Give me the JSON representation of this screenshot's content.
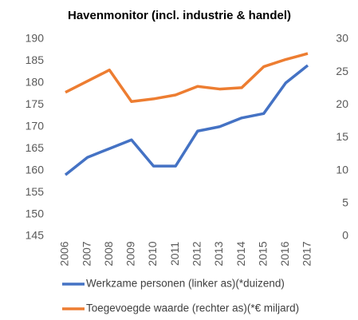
{
  "chart_data": {
    "type": "line",
    "title": "Havenmonitor (incl. industrie & handel)",
    "categories": [
      "2006",
      "2007",
      "2008",
      "2009",
      "2010",
      "2011",
      "2012",
      "2013",
      "2014",
      "2015",
      "2016",
      "2017"
    ],
    "series": [
      {
        "name": "Werkzame personen (linker as)(*duizend)",
        "color": "#4472c4",
        "values": [
          159,
          163,
          165,
          167,
          161,
          161,
          169,
          170,
          172,
          173,
          180,
          184
        ]
      },
      {
        "name": "Toegevoegde waarde (rechter as)(*€ miljard)",
        "color": "#ed7d31",
        "axis": "y2",
        "values": [
          21.9,
          23.6,
          25.3,
          20.5,
          20.9,
          21.5,
          22.8,
          22.4,
          22.6,
          25.8,
          26.9,
          27.8
        ]
      }
    ],
    "ylim": [
      145,
      190
    ],
    "yticks": [
      145,
      150,
      155,
      160,
      165,
      170,
      175,
      180,
      185,
      190
    ],
    "y2lim": [
      0,
      30
    ],
    "y2ticks": [
      0,
      5,
      10,
      15,
      20,
      25,
      30
    ],
    "grid": false
  }
}
